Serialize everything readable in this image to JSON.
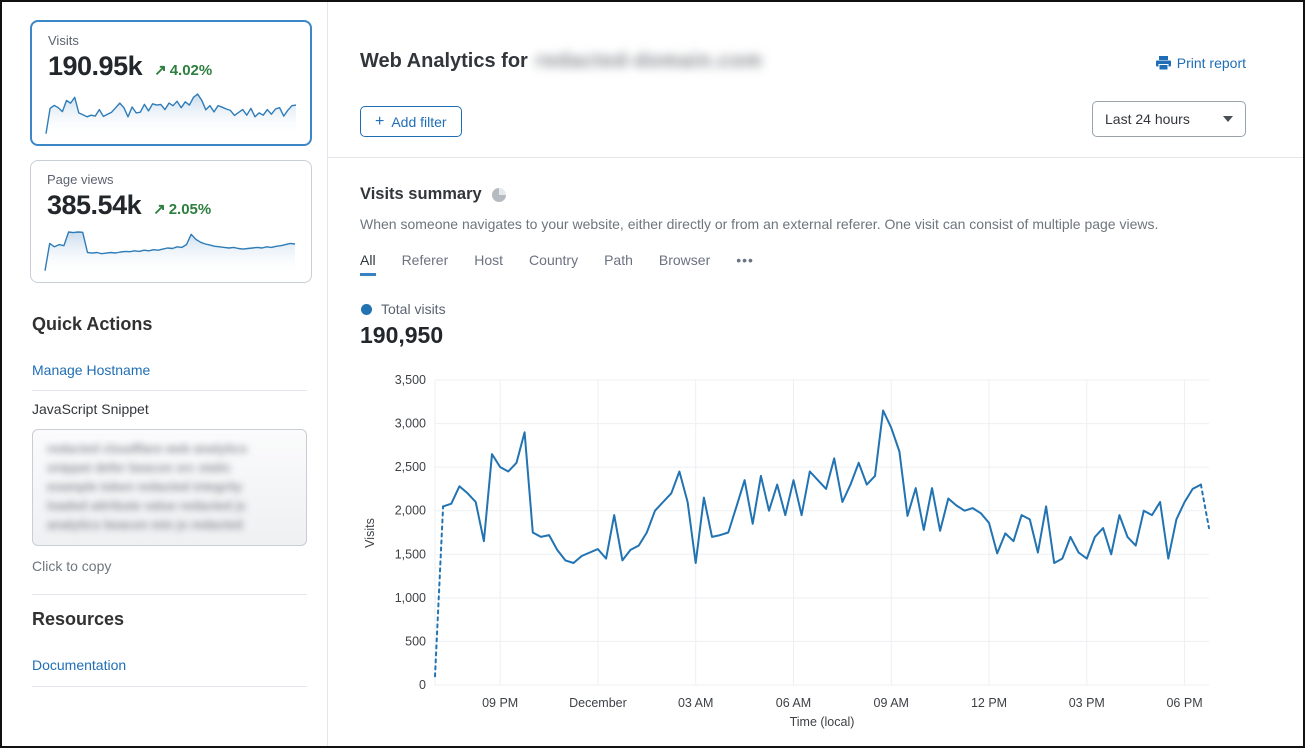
{
  "colors": {
    "accent_blue": "#1f6eb5",
    "chart_line": "#2273b2",
    "positive_green": "#2d7e3f",
    "selected_card_border": "#3b87c8",
    "active_tab_underline": "#3a80c2"
  },
  "sidebar": {
    "visits_card": {
      "label": "Visits",
      "value": "190.95k",
      "trend_arrow": "↗",
      "delta": "4.02%",
      "sparkline": [
        100,
        2050,
        2280,
        2100,
        1800,
        2650,
        2450,
        2900,
        1700,
        1550,
        1400,
        1520,
        1450,
        1950,
        1430,
        1600,
        1750,
        2100,
        2450,
        2100,
        1400,
        2150,
        1700,
        1750,
        2350,
        1850,
        2400,
        2300,
        2350,
        1950,
        2450,
        2250,
        2600,
        2100,
        2550,
        2300,
        2900,
        3150,
        2680,
        1940,
        2260,
        1780,
        2260,
        2140,
        2000,
        1890,
        1510,
        1740,
        1950,
        1520,
        2050,
        1400,
        1700,
        1520,
        1950,
        1600,
        2000,
        2100,
        1450,
        1900,
        2250,
        2300
      ]
    },
    "pageviews_card": {
      "label": "Page views",
      "value": "385.54k",
      "trend_arrow": "↗",
      "delta": "2.05%",
      "sparkline": [
        200,
        2600,
        2300,
        2500,
        2400,
        3600,
        3550,
        3600,
        3580,
        1800,
        1750,
        1800,
        1700,
        1750,
        1800,
        1760,
        1850,
        1900,
        1870,
        1950,
        1900,
        2000,
        1950,
        2050,
        2000,
        2100,
        2200,
        2150,
        2300,
        2250,
        2500,
        3400,
        2950,
        2700,
        2550,
        2450,
        2350,
        2300,
        2250,
        2200,
        2250,
        2150,
        2100,
        2150,
        2200,
        2250,
        2200,
        2300,
        2250,
        2350,
        2400,
        2500,
        2600,
        2550
      ]
    },
    "quick_actions": {
      "title": "Quick Actions",
      "manage_hostname": "Manage Hostname",
      "js_snippet_label": "JavaScript Snippet",
      "snippet_lines": [
        "redacted cloudflare web analytics",
        "snippet defer beacon src static",
        "example token redacted integrity",
        "loaded attribute value redacted js",
        "analytics beacon min js redacted"
      ],
      "click_to_copy": "Click to copy"
    },
    "resources": {
      "title": "Resources",
      "documentation": "Documentation"
    }
  },
  "header": {
    "title": "Web Analytics for",
    "domain_redacted": "redacted-domain.com",
    "print_report": "Print report"
  },
  "toolbar": {
    "add_filter_plus": "+",
    "add_filter_label": "Add filter",
    "time_range_value": "Last 24 hours"
  },
  "summary": {
    "title": "Visits summary",
    "description": "When someone navigates to your website, either directly or from an external referer. One visit can consist of multiple page views.",
    "tabs": [
      "All",
      "Referer",
      "Host",
      "Country",
      "Path",
      "Browser"
    ],
    "active_tab": "All",
    "more_label": "•••",
    "legend": "Total visits",
    "total": "190,950"
  },
  "chart_data": {
    "type": "line",
    "title": "Total visits",
    "xlabel": "Time (local)",
    "ylabel": "Visits",
    "ylim": [
      0,
      3500
    ],
    "yticks": [
      0,
      500,
      1000,
      1500,
      2000,
      2500,
      3000,
      3500
    ],
    "xtick_labels": [
      "09 PM",
      "December",
      "03 AM",
      "06 AM",
      "09 AM",
      "12 PM",
      "03 PM",
      "06 PM"
    ],
    "xtick_indices": [
      8,
      20,
      32,
      44,
      56,
      68,
      80,
      92
    ],
    "interval_minutes": 15,
    "grid": true,
    "legend_position": "top-left",
    "line_color": "#2273b2",
    "dashed_head_segments": 1,
    "dashed_tail_segments": 1,
    "series": [
      {
        "name": "Total visits",
        "values": [
          100,
          2050,
          2080,
          2280,
          2200,
          2100,
          1650,
          2650,
          2500,
          2450,
          2550,
          2900,
          1750,
          1700,
          1720,
          1550,
          1430,
          1400,
          1480,
          1520,
          1560,
          1450,
          1950,
          1430,
          1550,
          1600,
          1750,
          2000,
          2100,
          2200,
          2450,
          2100,
          1400,
          2150,
          1700,
          1720,
          1750,
          2050,
          2350,
          1850,
          2400,
          2000,
          2300,
          1950,
          2350,
          1950,
          2450,
          2350,
          2250,
          2600,
          2100,
          2300,
          2550,
          2300,
          2400,
          3150,
          2950,
          2680,
          1940,
          2260,
          1780,
          2260,
          1770,
          2140,
          2060,
          2000,
          2030,
          1970,
          1860,
          1510,
          1740,
          1650,
          1950,
          1900,
          1520,
          2050,
          1400,
          1450,
          1700,
          1520,
          1450,
          1700,
          1800,
          1500,
          1950,
          1700,
          1600,
          2000,
          1950,
          2100,
          1450,
          1900,
          2100,
          2250,
          2300,
          1800
        ]
      }
    ]
  }
}
